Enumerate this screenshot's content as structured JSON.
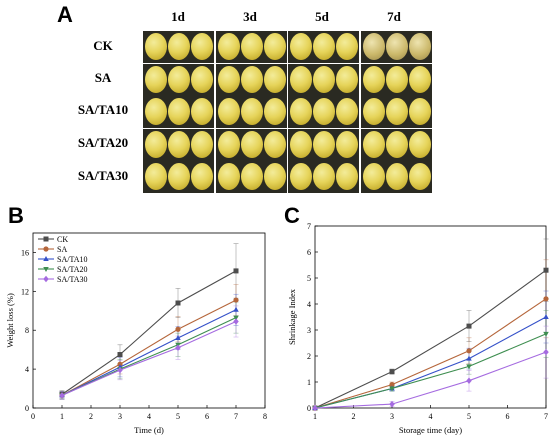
{
  "panel_a": {
    "letter": "A",
    "columns": [
      "1d",
      "3d",
      "5d",
      "7d"
    ],
    "rows": [
      "CK",
      "SA",
      "SA/TA10",
      "SA/TA20",
      "SA/TA30"
    ]
  },
  "chart_data": [
    {
      "panel": "B",
      "type": "line",
      "xlabel": "Time (d)",
      "ylabel": "Weight loss (%)",
      "xlim": [
        0,
        8
      ],
      "ylim": [
        0,
        18
      ],
      "xticks": [
        0,
        1,
        2,
        3,
        4,
        5,
        6,
        7,
        8
      ],
      "yticks": [
        0,
        4,
        8,
        12,
        16
      ],
      "x": [
        1,
        3,
        5,
        7
      ],
      "legend_position": "top-left",
      "series": [
        {
          "name": "CK",
          "color": "#4d4d4d",
          "marker": "square",
          "values": [
            1.4,
            5.5,
            10.8,
            14.1
          ],
          "errors": [
            0.4,
            1.0,
            1.5,
            2.8
          ]
        },
        {
          "name": "SA",
          "color": "#b5663b",
          "marker": "circle",
          "values": [
            1.3,
            4.5,
            8.1,
            11.1
          ],
          "errors": [
            0.4,
            1.0,
            1.3,
            1.6
          ]
        },
        {
          "name": "SA/TA10",
          "color": "#3551c9",
          "marker": "triangle-up",
          "values": [
            1.3,
            4.2,
            7.2,
            10.1
          ],
          "errors": [
            0.4,
            1.0,
            1.2,
            1.6
          ]
        },
        {
          "name": "SA/TA20",
          "color": "#3e8e50",
          "marker": "triangle-down",
          "values": [
            1.3,
            4.0,
            6.5,
            9.3
          ],
          "errors": [
            0.4,
            1.0,
            1.2,
            1.6
          ]
        },
        {
          "name": "SA/TA30",
          "color": "#a56be0",
          "marker": "diamond",
          "values": [
            1.3,
            3.9,
            6.2,
            8.9
          ],
          "errors": [
            0.4,
            1.0,
            1.2,
            1.6
          ]
        }
      ]
    },
    {
      "panel": "C",
      "type": "line",
      "xlabel": "Storage time (day)",
      "ylabel": "Shrinkage Index",
      "xlim": [
        1,
        7
      ],
      "ylim": [
        0,
        7
      ],
      "xticks": [
        1,
        2,
        3,
        4,
        5,
        6,
        7
      ],
      "yticks": [
        0,
        1,
        2,
        3,
        4,
        5,
        6,
        7
      ],
      "x": [
        1,
        3,
        5,
        7
      ],
      "series": [
        {
          "name": "CK",
          "color": "#4d4d4d",
          "marker": "square",
          "values": [
            0,
            1.4,
            3.15,
            5.3
          ],
          "errors": [
            0,
            0.1,
            0.6,
            1.2
          ]
        },
        {
          "name": "SA",
          "color": "#b5663b",
          "marker": "circle",
          "values": [
            0,
            0.9,
            2.2,
            4.2
          ],
          "errors": [
            0,
            0.1,
            0.5,
            1.5
          ]
        },
        {
          "name": "SA/TA10",
          "color": "#3551c9",
          "marker": "triangle-up",
          "values": [
            0,
            0.75,
            1.9,
            3.5
          ],
          "errors": [
            0,
            0.1,
            0.4,
            1.0
          ]
        },
        {
          "name": "SA/TA20",
          "color": "#3e8e50",
          "marker": "triangle-down",
          "values": [
            0,
            0.75,
            1.6,
            2.85
          ],
          "errors": [
            0,
            0.1,
            0.3,
            0.9
          ]
        },
        {
          "name": "SA/TA30",
          "color": "#a56be0",
          "marker": "diamond",
          "values": [
            0,
            0.15,
            1.05,
            2.15
          ],
          "errors": [
            0,
            0.1,
            0.4,
            1.0
          ]
        }
      ]
    }
  ]
}
